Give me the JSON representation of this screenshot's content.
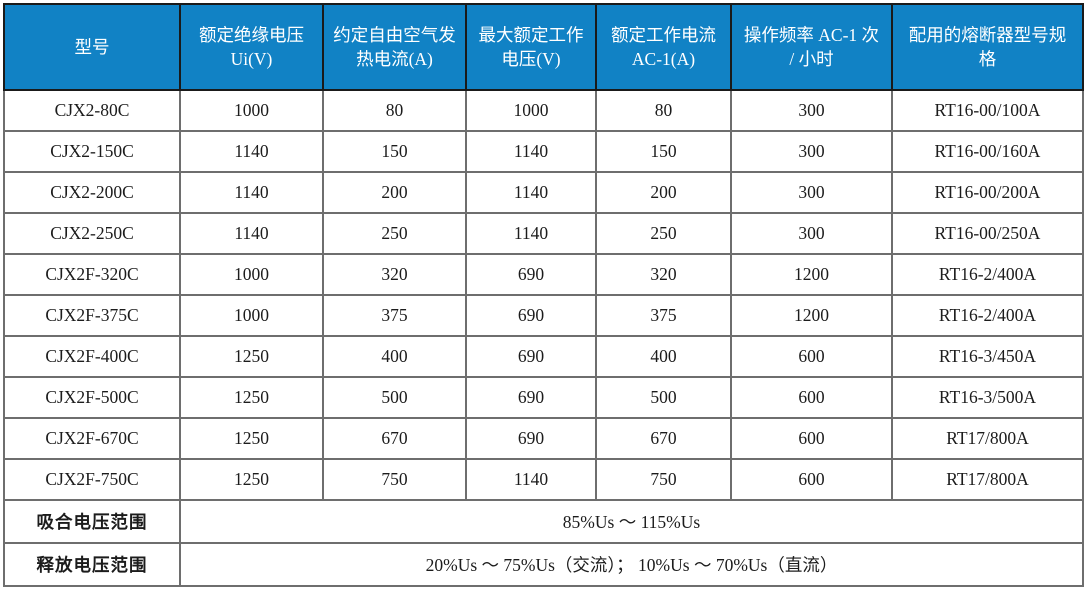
{
  "table": {
    "columns": [
      {
        "label": "型号"
      },
      {
        "label": "额定绝缘电压 Ui(V)"
      },
      {
        "label": "约定自由空气发热电流(A)"
      },
      {
        "label": "最大额定工作电压(V)"
      },
      {
        "label": "额定工作电流 AC-1(A)"
      },
      {
        "label": "操作频率 AC-1 次 / 小时"
      },
      {
        "label": "配用的熔断器型号规格"
      }
    ],
    "rows": [
      [
        "CJX2-80C",
        "1000",
        "80",
        "1000",
        "80",
        "300",
        "RT16-00/100A"
      ],
      [
        "CJX2-150C",
        "1140",
        "150",
        "1140",
        "150",
        "300",
        "RT16-00/160A"
      ],
      [
        "CJX2-200C",
        "1140",
        "200",
        "1140",
        "200",
        "300",
        "RT16-00/200A"
      ],
      [
        "CJX2-250C",
        "1140",
        "250",
        "1140",
        "250",
        "300",
        "RT16-00/250A"
      ],
      [
        "CJX2F-320C",
        "1000",
        "320",
        "690",
        "320",
        "1200",
        "RT16-2/400A"
      ],
      [
        "CJX2F-375C",
        "1000",
        "375",
        "690",
        "375",
        "1200",
        "RT16-2/400A"
      ],
      [
        "CJX2F-400C",
        "1250",
        "400",
        "690",
        "400",
        "600",
        "RT16-3/450A"
      ],
      [
        "CJX2F-500C",
        "1250",
        "500",
        "690",
        "500",
        "600",
        "RT16-3/500A"
      ],
      [
        "CJX2F-670C",
        "1250",
        "670",
        "690",
        "670",
        "600",
        "RT17/800A"
      ],
      [
        "CJX2F-750C",
        "1250",
        "750",
        "1140",
        "750",
        "600",
        "RT17/800A"
      ]
    ],
    "footer_rows": [
      {
        "label": "吸合电压范围",
        "value": "85%Us ～ 115%Us"
      },
      {
        "label": "释放电压范围",
        "value": "20%Us ～ 75%Us（交流）； 10%Us ～ 70%Us（直流）"
      }
    ]
  },
  "colors": {
    "header_bg": "#1182C5",
    "header_text": "#FFFFFF",
    "grid_line": "#6E6E6E",
    "outer_border": "#1C1C1C",
    "body_text": "#1C1C1C"
  }
}
